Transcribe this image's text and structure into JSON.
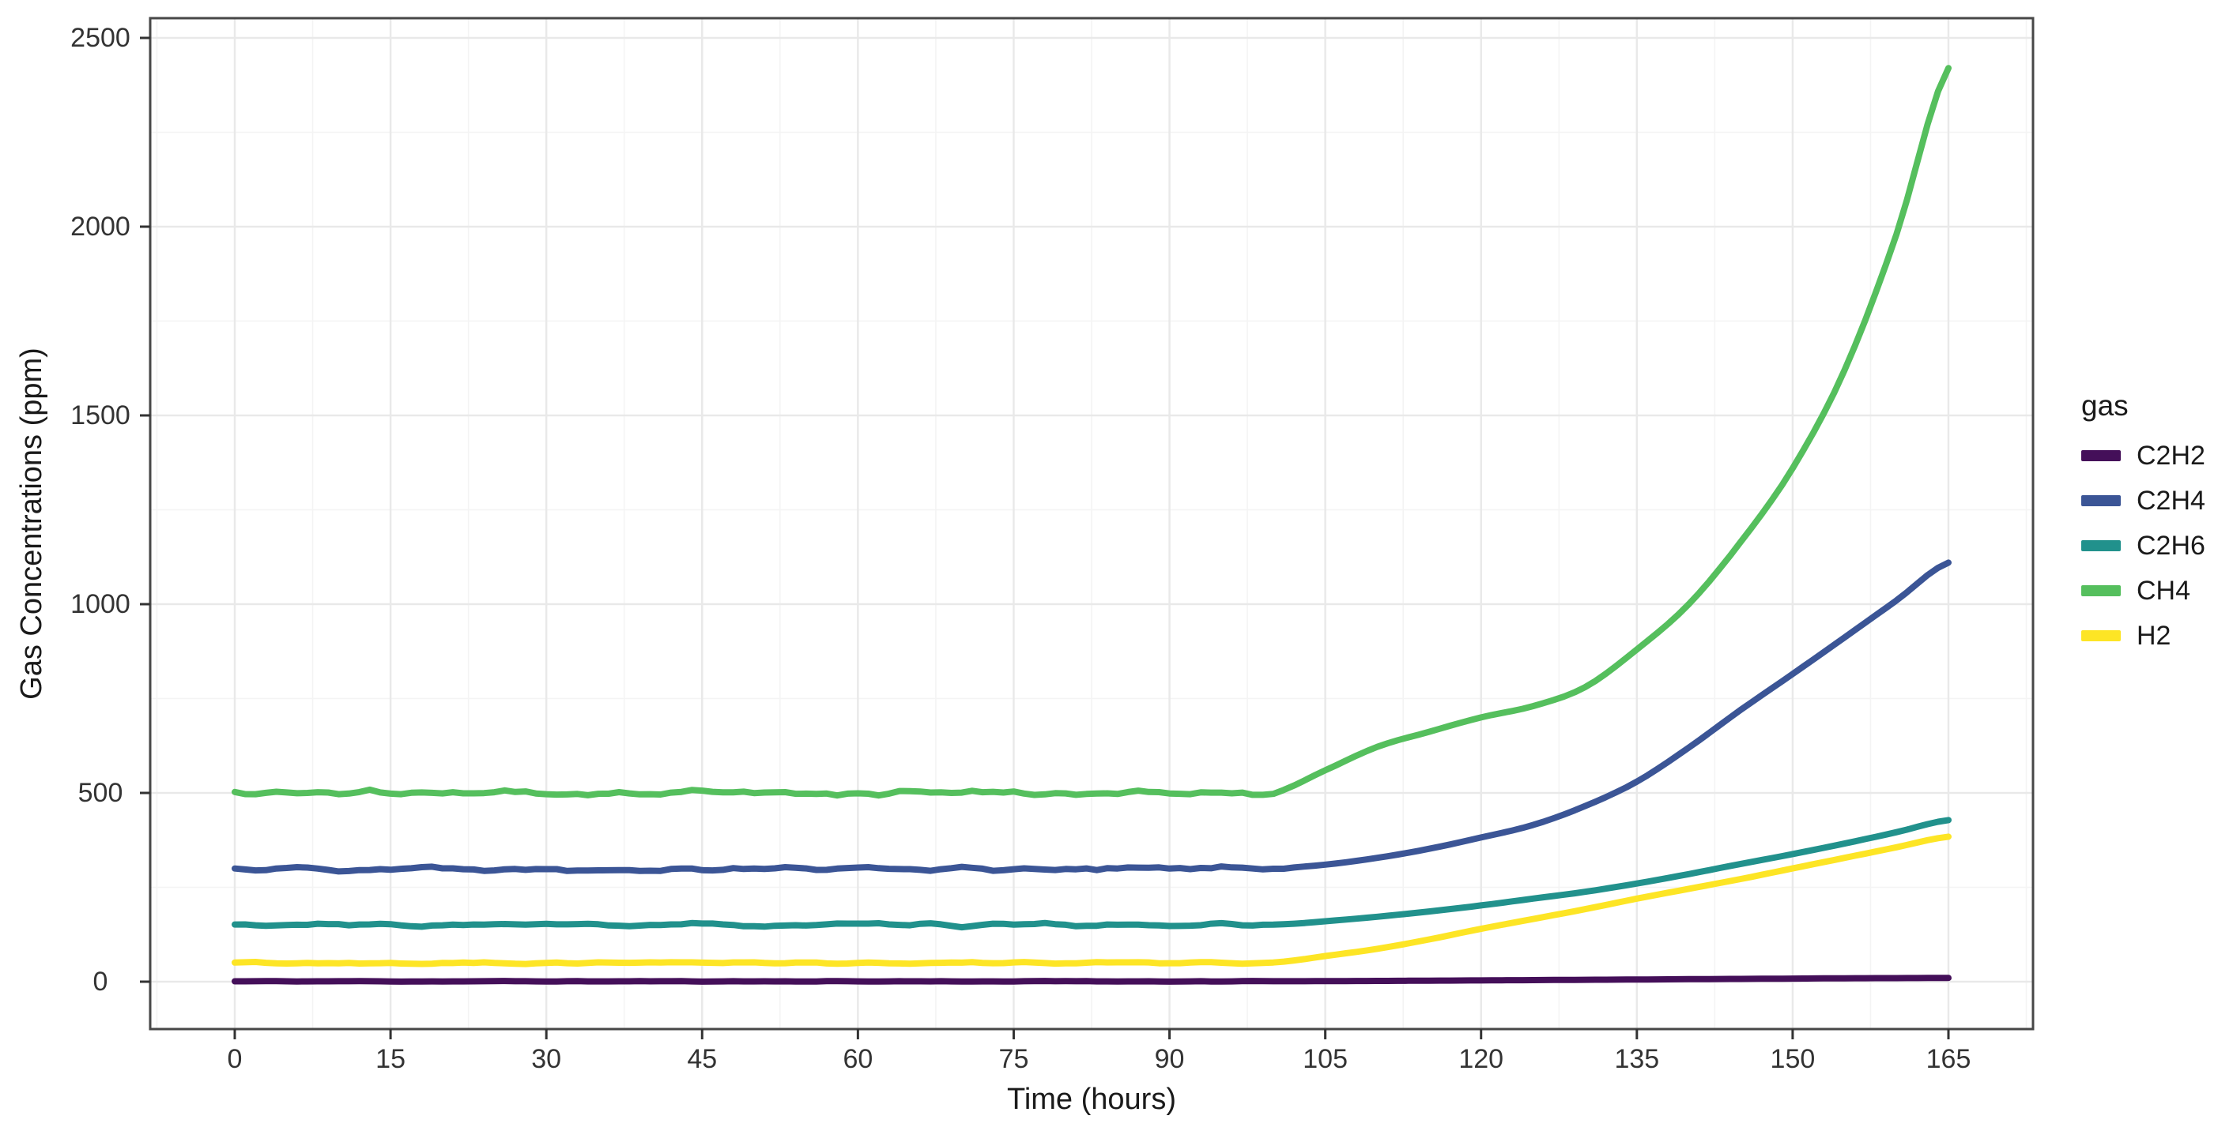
{
  "figure": {
    "background": "#ffffff",
    "panel_border_color": "#474747",
    "grid_major_color": "#e9e9e9",
    "grid_minor_color": "#f4f4f4",
    "tick_mark_color": "#333333"
  },
  "axes": {
    "x": {
      "title": "Time (hours)",
      "ticks": [
        0,
        15,
        30,
        45,
        60,
        75,
        90,
        105,
        120,
        135,
        150,
        165
      ]
    },
    "y": {
      "title": "Gas Concentrations (ppm)",
      "ticks": [
        0,
        500,
        1000,
        1500,
        2000,
        2500
      ]
    }
  },
  "legend": {
    "title": "gas",
    "entries": [
      {
        "label": "C2H2",
        "color": "#440f59"
      },
      {
        "label": "C2H4",
        "color": "#3b5596"
      },
      {
        "label": "C2H6",
        "color": "#21918c"
      },
      {
        "label": "CH4",
        "color": "#55bf5d"
      },
      {
        "label": "H2",
        "color": "#fde525"
      }
    ]
  },
  "chart_data": {
    "type": "line",
    "title": "",
    "xlabel": "Time (hours)",
    "ylabel": "Gas Concentrations (ppm)",
    "xlim": [
      -8.25,
      173.25
    ],
    "ylim": [
      -125,
      2552
    ],
    "x_tick_interval": 15,
    "y_tick_interval": 500,
    "grid": true,
    "legend_position": "right",
    "legend_title": "gas",
    "x": [
      0,
      5,
      10,
      15,
      20,
      25,
      30,
      35,
      40,
      45,
      50,
      55,
      60,
      65,
      70,
      75,
      80,
      85,
      90,
      95,
      100,
      105,
      110,
      115,
      120,
      125,
      130,
      135,
      140,
      145,
      150,
      155,
      160,
      165
    ],
    "series": [
      {
        "name": "C2H2",
        "color": "#440f59",
        "seed": 11,
        "noise_ppm": 0.8,
        "values": [
          1,
          1,
          1,
          1,
          1,
          1,
          1,
          1,
          1,
          1,
          1,
          1,
          1,
          1,
          1,
          1,
          1,
          1,
          1,
          1,
          1,
          1.5,
          2,
          2.7,
          3.4,
          4.2,
          5,
          5.8,
          6.6,
          7.4,
          8.2,
          9,
          9.5,
          10
        ]
      },
      {
        "name": "C2H4",
        "color": "#3b5596",
        "seed": 22,
        "noise_ppm": 6,
        "values": [
          300,
          300,
          300,
          300,
          300,
          300,
          300,
          300,
          300,
          300,
          300,
          300,
          300,
          300,
          300,
          300,
          300,
          300,
          300,
          300,
          300,
          310,
          328,
          352,
          382,
          415,
          465,
          530,
          620,
          720,
          815,
          912,
          1010,
          1110
        ]
      },
      {
        "name": "C2H6",
        "color": "#21918c",
        "seed": 33,
        "noise_ppm": 4,
        "values": [
          150,
          150,
          150,
          150,
          150,
          150,
          150,
          150,
          150,
          150,
          150,
          150,
          150,
          150,
          150,
          150,
          150,
          150,
          150,
          150,
          150,
          160,
          172,
          186,
          202,
          220,
          238,
          260,
          285,
          312,
          338,
          366,
          396,
          428
        ]
      },
      {
        "name": "CH4",
        "color": "#55bf5d",
        "seed": 44,
        "noise_ppm": 7,
        "values": [
          500,
          500,
          500,
          500,
          500,
          500,
          500,
          500,
          500,
          500,
          500,
          500,
          500,
          500,
          500,
          500,
          500,
          500,
          500,
          500,
          500,
          560,
          622,
          662,
          700,
          730,
          780,
          880,
          1000,
          1165,
          1360,
          1620,
          1980,
          2420
        ]
      },
      {
        "name": "H2",
        "color": "#fde525",
        "seed": 55,
        "noise_ppm": 2.5,
        "values": [
          50,
          50,
          50,
          50,
          50,
          50,
          50,
          50,
          50,
          50,
          50,
          50,
          50,
          50,
          50,
          50,
          50,
          50,
          50,
          50,
          50,
          68,
          87,
          112,
          140,
          166,
          192,
          220,
          246,
          272,
          300,
          328,
          356,
          384
        ]
      }
    ]
  }
}
